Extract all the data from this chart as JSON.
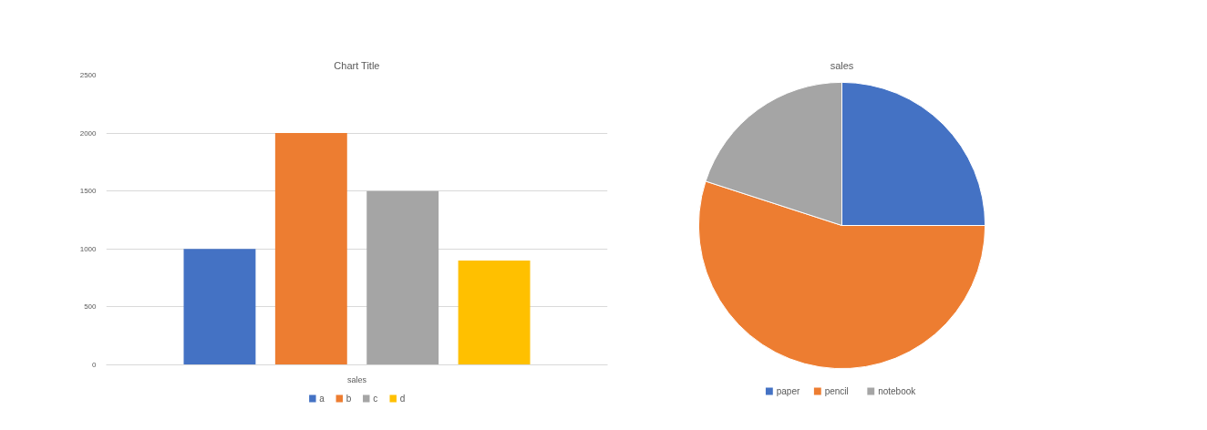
{
  "chart_data": [
    {
      "type": "bar",
      "title": "Chart Title",
      "categories": [
        "sales"
      ],
      "series": [
        {
          "name": "a",
          "color": "#4472c4",
          "values": [
            1000
          ]
        },
        {
          "name": "b",
          "color": "#ed7d31",
          "values": [
            2000
          ]
        },
        {
          "name": "c",
          "color": "#a5a5a5",
          "values": [
            1500
          ]
        },
        {
          "name": "d",
          "color": "#ffc000",
          "values": [
            900
          ]
        }
      ],
      "ylim": [
        0,
        2500
      ],
      "yticks": [
        0,
        500,
        1000,
        1500,
        2000,
        2500
      ],
      "grid": "y",
      "legend": "bottom"
    },
    {
      "type": "pie",
      "title": "sales",
      "categories": [
        "paper",
        "pencil",
        "notebook"
      ],
      "values": [
        25,
        55,
        20
      ],
      "colors": [
        "#4472c4",
        "#ed7d31",
        "#a5a5a5"
      ],
      "legend": "bottom"
    }
  ]
}
